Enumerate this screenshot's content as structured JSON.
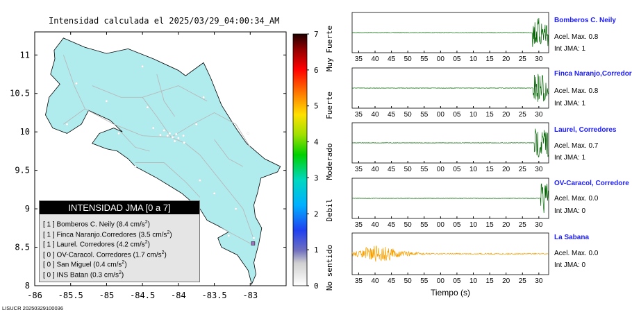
{
  "map": {
    "title": "Intensidad calculada el 2025/03/29_04:00:34_AM",
    "x_ticks": [
      "-86",
      "-85.5",
      "-85",
      "-84.5",
      "-84",
      "-83.5",
      "-83"
    ],
    "y_ticks": [
      "11",
      "10.5",
      "10",
      "9.5",
      "9",
      "8.5",
      "8"
    ],
    "colorbar_ticks": [
      "0",
      "1",
      "2",
      "3",
      "4",
      "5",
      "6",
      "7"
    ],
    "colorbar_labels": [
      "No sentido",
      "Debil",
      "Moderado",
      "Fuerte",
      "Muy Fuerte"
    ],
    "footer": "LISUCR 20250329100036",
    "land_color": "#b0ecee",
    "marker_color": "#a070c0"
  },
  "legend": {
    "title": "INTENSIDAD JMA [0 a 7]",
    "entries": [
      {
        "jma": "[ 1 ]",
        "name": "Bomberos C. Neily",
        "value": "(8.4 cm/s",
        "sup": "2",
        "close": ")"
      },
      {
        "jma": "[ 1 ]",
        "name": "Finca Naranjo.Corredores",
        "value": "(3.5 cm/s",
        "sup": "2",
        "close": ")"
      },
      {
        "jma": "[ 1 ]",
        "name": "Laurel. Corredores",
        "value": "(4.2 cm/s",
        "sup": "2",
        "close": ")"
      },
      {
        "jma": "[ 0 ]",
        "name": "OV-Caracol. Corredores",
        "value": "(1.7 cm/s",
        "sup": "2",
        "close": ")"
      },
      {
        "jma": "[ 0 ]",
        "name": "San Miguel",
        "value": "(0.4 cm/s",
        "sup": "2",
        "close": ")"
      },
      {
        "jma": "[ 0 ]",
        "name": "INS Batan",
        "value": "(0.3 cm/s",
        "sup": "2",
        "close": ")"
      }
    ]
  },
  "seismograms": {
    "x_ticks": [
      "35",
      "40",
      "45",
      "50",
      "55",
      "00",
      "05",
      "10",
      "15",
      "20",
      "25",
      "30"
    ],
    "xlabel": "Tiempo (s)",
    "stations": [
      {
        "name": "Bomberos C. Neily",
        "acel": "Acel. Max. 0.8",
        "int": "Int JMA: 1",
        "color": "#006400",
        "burst_start": 28.0
      },
      {
        "name": "Finca Naranjo,Corredor",
        "acel": "Acel. Max. 0.8",
        "int": "Int JMA: 1",
        "color": "#006400",
        "burst_start": 28.3
      },
      {
        "name": "Laurel, Corredores",
        "acel": "Acel. Max. 0.7",
        "int": "Int JMA: 1",
        "color": "#006400",
        "burst_start": 28.6
      },
      {
        "name": "OV-Caracol, Corredore",
        "acel": "Acel. Max. 0.0",
        "int": "Int JMA: 0",
        "color": "#006400",
        "burst_start": 30.5
      },
      {
        "name": "La Sabana",
        "acel": "Acel. Max. 0.0",
        "int": "Int JMA: 0",
        "color": "#f5a000",
        "burst_start": -1
      }
    ]
  },
  "chart_data": [
    {
      "type": "scatter",
      "title": "Intensidad calculada el 2025/03/29_04:00:34_AM",
      "xlabel": "",
      "ylabel": "",
      "xlim": [
        -86,
        -82.5
      ],
      "ylim": [
        8,
        11.3
      ],
      "colorbar": {
        "min": 0,
        "max": 7,
        "labels": [
          "No sentido",
          "Debil",
          "Moderado",
          "Fuerte",
          "Muy Fuerte"
        ]
      },
      "series": [
        {
          "name": "INTENSIDAD JMA [0 a 7]",
          "points": [
            {
              "label": "Bomberos C. Neily",
              "jma": 1,
              "acc_cm_s2": 8.4
            },
            {
              "label": "Finca Naranjo.Corredores",
              "jma": 1,
              "acc_cm_s2": 3.5
            },
            {
              "label": "Laurel. Corredores",
              "jma": 1,
              "acc_cm_s2": 4.2
            },
            {
              "label": "OV-Caracol. Corredores",
              "jma": 0,
              "acc_cm_s2": 1.7
            },
            {
              "label": "San Miguel",
              "jma": 0,
              "acc_cm_s2": 0.4
            },
            {
              "label": "INS Batan",
              "jma": 0,
              "acc_cm_s2": 0.3
            }
          ]
        }
      ]
    },
    {
      "type": "line",
      "xlabel": "Tiempo (s)",
      "x_ticks": [
        "35",
        "40",
        "45",
        "50",
        "55",
        "00",
        "05",
        "10",
        "15",
        "20",
        "25",
        "30"
      ],
      "series": [
        {
          "name": "Bomberos C. Neily",
          "acel_max": 0.8,
          "int_jma": 1
        },
        {
          "name": "Finca Naranjo,Corredor",
          "acel_max": 0.8,
          "int_jma": 1
        },
        {
          "name": "Laurel, Corredores",
          "acel_max": 0.7,
          "int_jma": 1
        },
        {
          "name": "OV-Caracol, Corredore",
          "acel_max": 0.0,
          "int_jma": 0
        },
        {
          "name": "La Sabana",
          "acel_max": 0.0,
          "int_jma": 0
        }
      ]
    }
  ]
}
